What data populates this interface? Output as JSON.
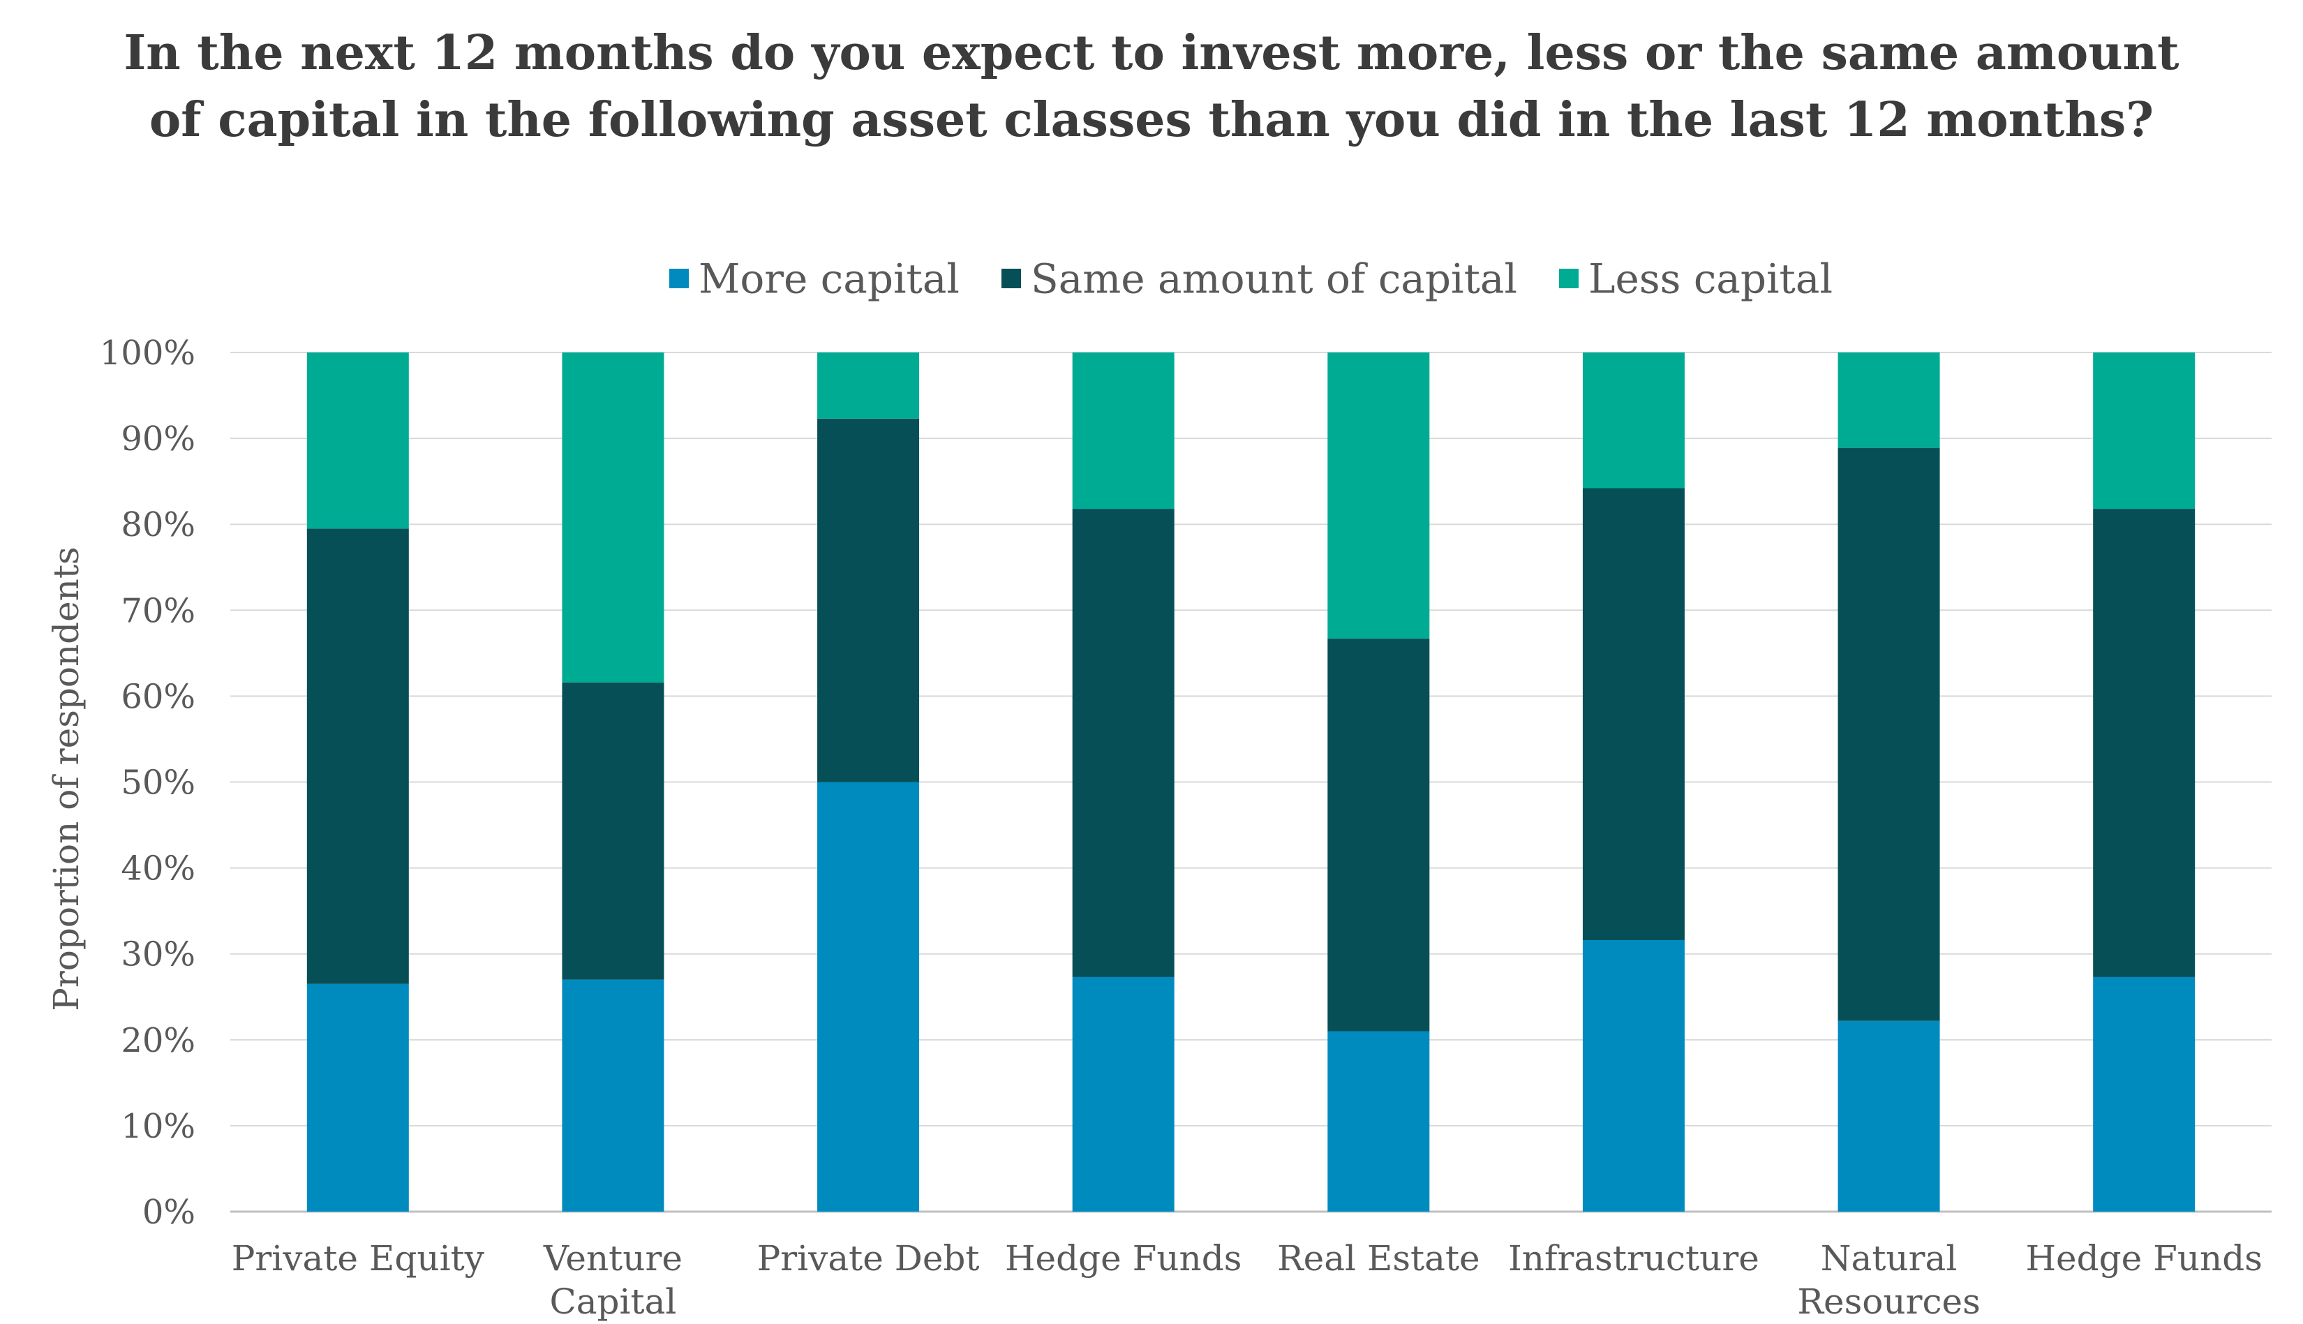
{
  "chart_data": {
    "type": "bar",
    "stacked": true,
    "title_lines": [
      "In the next 12 months do you expect to invest more, less or the same amount",
      "of capital in the following asset classes than you did in the last 12 months?"
    ],
    "xlabel": "",
    "ylabel": "Proportion of respondents",
    "ylim": [
      0,
      100
    ],
    "y_ticks": [
      "0%",
      "10%",
      "20%",
      "30%",
      "40%",
      "50%",
      "60%",
      "70%",
      "80%",
      "90%",
      "100%"
    ],
    "grid": true,
    "legend_position": "top-center",
    "categories": [
      [
        "Private Equity"
      ],
      [
        "Venture",
        "Capital"
      ],
      [
        "Private Debt"
      ],
      [
        "Hedge Funds"
      ],
      [
        "Real Estate"
      ],
      [
        "Infrastructure"
      ],
      [
        "Natural",
        "Resources"
      ],
      [
        "Hedge Funds"
      ]
    ],
    "series": [
      {
        "name": "More capital",
        "color": "#008bbf",
        "values": [
          26.5,
          27.0,
          50.0,
          27.3,
          21.0,
          31.6,
          22.2,
          27.3
        ]
      },
      {
        "name": "Same amount of capital",
        "color": "#074f57",
        "values": [
          53.0,
          34.6,
          42.3,
          54.5,
          45.7,
          52.6,
          66.7,
          54.5
        ]
      },
      {
        "name": "Less capital",
        "color": "#00ab94",
        "values": [
          20.5,
          38.4,
          7.7,
          18.2,
          33.3,
          15.8,
          11.1,
          18.2
        ]
      }
    ]
  }
}
